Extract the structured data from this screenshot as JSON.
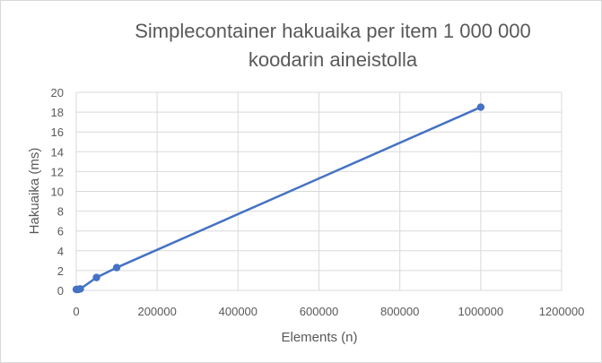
{
  "chart_data": {
    "type": "scatter",
    "title_line1": "Simplecontainer hakuaika per item 1 000 000",
    "title_line2": "koodarin aineistolla",
    "xlabel": "Elements (n)",
    "ylabel": "Hakuaika (ms)",
    "xlim": [
      0,
      1200000
    ],
    "ylim": [
      0,
      20
    ],
    "x_ticks": [
      0,
      200000,
      400000,
      600000,
      800000,
      1000000,
      1200000
    ],
    "x_tick_labels": [
      "0",
      "200000",
      "400000",
      "600000",
      "800000",
      "1000000",
      "1200000"
    ],
    "y_ticks": [
      0,
      2,
      4,
      6,
      8,
      10,
      12,
      14,
      16,
      18,
      20
    ],
    "y_tick_labels": [
      "0",
      "2",
      "4",
      "6",
      "8",
      "10",
      "12",
      "14",
      "16",
      "18",
      "20"
    ],
    "grid": true,
    "line_color": "#4472c4",
    "grid_color": "#d9d9d9",
    "series": [
      {
        "x": [
          100,
          1000,
          5000,
          10000,
          50000,
          100000,
          1000000
        ],
        "y": [
          0.1,
          0.1,
          0.1,
          0.15,
          1.3,
          2.3,
          18.5
        ]
      }
    ]
  }
}
